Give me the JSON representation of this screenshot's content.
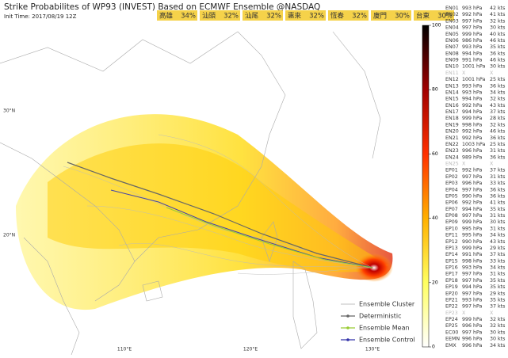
{
  "title": "Strike Probabilites of WP93 (INVEST) Based on ECMWF Ensemble @NASDAQ",
  "init_time": "Init Time: 2017/08/19 12Z",
  "cities": [
    [
      "高雄",
      "34%"
    ],
    [
      "汕頭",
      "32%"
    ],
    [
      "汕尾",
      "32%"
    ],
    [
      "惠來",
      "32%"
    ],
    [
      "恆春",
      "32%"
    ],
    [
      "廈門",
      "30%"
    ],
    [
      "台東",
      "30%"
    ]
  ],
  "colorbar": {
    "ylim": [
      0,
      100
    ],
    "ticks": [
      0,
      20,
      40,
      60,
      80,
      100
    ]
  },
  "grid_labels": {
    "lat": [
      [
        "30°N",
        140
      ],
      [
        "20°N",
        297
      ]
    ],
    "lon": [
      [
        "110°E",
        157
      ],
      [
        "120°E",
        316
      ],
      [
        "130°E",
        470
      ]
    ]
  },
  "legend": [
    "Ensemble Cluster",
    "Deterministic",
    "Ensemble Mean",
    "Ensemble Control"
  ],
  "members": [
    [
      "EN01",
      "993 hPa",
      "42 kts"
    ],
    [
      "EN02",
      "992 hPa",
      "41 kts"
    ],
    [
      "EN03",
      "997 hPa",
      "32 kts"
    ],
    [
      "EN04",
      "997 hPa",
      "30 kts"
    ],
    [
      "EN05",
      "999 hPa",
      "40 kts"
    ],
    [
      "EN06",
      "986 hPa",
      "46 kts"
    ],
    [
      "EN07",
      "993 hPa",
      "35 kts"
    ],
    [
      "EN08",
      "994 hPa",
      "36 kts"
    ],
    [
      "EN09",
      "991 hPa",
      "46 kts"
    ],
    [
      "EN10",
      "1001 hPa",
      "30 kts"
    ],
    [
      "EN11",
      "X",
      "X"
    ],
    [
      "EN12",
      "1001 hPa",
      "25 kts"
    ],
    [
      "EN13",
      "993 hPa",
      "36 kts"
    ],
    [
      "EN14",
      "993 hPa",
      "34 kts"
    ],
    [
      "EN15",
      "994 hPa",
      "32 kts"
    ],
    [
      "EN16",
      "992 hPa",
      "43 kts"
    ],
    [
      "EN17",
      "994 hPa",
      "37 kts"
    ],
    [
      "EN18",
      "999 hPa",
      "28 kts"
    ],
    [
      "EN19",
      "998 hPa",
      "32 kts"
    ],
    [
      "EN20",
      "992 hPa",
      "46 kts"
    ],
    [
      "EN21",
      "992 hPa",
      "36 kts"
    ],
    [
      "EN22",
      "1003 hPa",
      "25 kts"
    ],
    [
      "EN23",
      "996 hPa",
      "31 kts"
    ],
    [
      "EN24",
      "989 hPa",
      "36 kts"
    ],
    [
      "EN25",
      "X",
      "X"
    ],
    [
      "EP01",
      "992 hPa",
      "37 kts"
    ],
    [
      "EP02",
      "997 hPa",
      "31 kts"
    ],
    [
      "EP03",
      "996 hPa",
      "33 kts"
    ],
    [
      "EP04",
      "997 hPa",
      "36 kts"
    ],
    [
      "EP05",
      "990 hPa",
      "36 kts"
    ],
    [
      "EP06",
      "992 hPa",
      "41 kts"
    ],
    [
      "EP07",
      "994 hPa",
      "35 kts"
    ],
    [
      "EP08",
      "997 hPa",
      "31 kts"
    ],
    [
      "EP09",
      "999 hPa",
      "30 kts"
    ],
    [
      "EP10",
      "995 hPa",
      "31 kts"
    ],
    [
      "EP11",
      "995 hPa",
      "34 kts"
    ],
    [
      "EP12",
      "990 hPa",
      "43 kts"
    ],
    [
      "EP13",
      "999 hPa",
      "29 kts"
    ],
    [
      "EP14",
      "991 hPa",
      "37 kts"
    ],
    [
      "EP15",
      "998 hPa",
      "33 kts"
    ],
    [
      "EP16",
      "993 hPa",
      "34 kts"
    ],
    [
      "EP17",
      "997 hPa",
      "31 kts"
    ],
    [
      "EP18",
      "997 hPa",
      "35 kts"
    ],
    [
      "EP19",
      "994 hPa",
      "35 kts"
    ],
    [
      "EP20",
      "997 hPa",
      "29 kts"
    ],
    [
      "EP21",
      "993 hPa",
      "35 kts"
    ],
    [
      "EP22",
      "997 hPa",
      "37 kts"
    ],
    [
      "EP23",
      "X",
      "X"
    ],
    [
      "EP24",
      "999 hPa",
      "32 kts"
    ],
    [
      "EP25",
      "996 hPa",
      "32 kts"
    ],
    [
      "EC00",
      "997 hPa",
      "30 kts"
    ],
    [
      "EEMN",
      "996 hPa",
      "30 kts"
    ],
    [
      "EMX",
      "996 hPa",
      "34 kts"
    ]
  ]
}
